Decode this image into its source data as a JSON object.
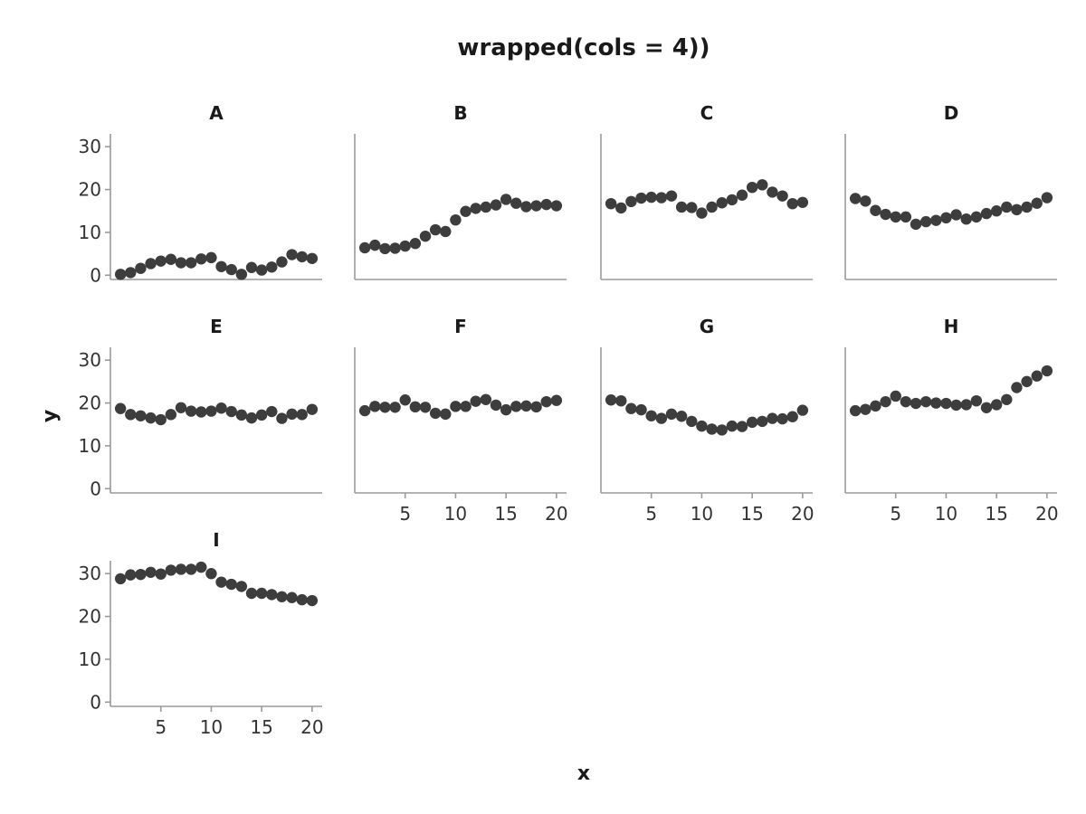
{
  "chart_data": {
    "type": "scatter",
    "title": "wrapped(cols = 4))",
    "xlabel": "x",
    "ylabel": "y",
    "xlim": [
      0,
      21
    ],
    "ylim": [
      -1,
      33
    ],
    "x_ticks": [
      5,
      10,
      15,
      20
    ],
    "y_ticks": [
      0,
      10,
      20,
      30
    ],
    "grid": false,
    "point_color": "#3d3d3d",
    "axis_color": "#9a9a9a",
    "x": [
      1,
      2,
      3,
      4,
      5,
      6,
      7,
      8,
      9,
      10,
      11,
      12,
      13,
      14,
      15,
      16,
      17,
      18,
      19,
      20
    ],
    "panels": [
      {
        "name": "A",
        "values": [
          0.2,
          0.6,
          1.6,
          2.7,
          3.3,
          3.7,
          2.9,
          2.9,
          3.8,
          4.1,
          2.0,
          1.3,
          0.2,
          1.8,
          1.2,
          1.9,
          3.1,
          4.8,
          4.3,
          3.9
        ]
      },
      {
        "name": "B",
        "values": [
          6.4,
          7.0,
          6.2,
          6.3,
          6.8,
          7.4,
          9.1,
          10.6,
          10.2,
          12.9,
          14.9,
          15.6,
          15.9,
          16.4,
          17.7,
          16.8,
          16.0,
          16.2,
          16.5,
          16.2
        ]
      },
      {
        "name": "C",
        "values": [
          16.7,
          15.7,
          17.2,
          18.0,
          18.2,
          18.1,
          18.5,
          15.9,
          15.8,
          14.5,
          15.9,
          16.9,
          17.6,
          18.7,
          20.5,
          21.1,
          19.4,
          18.5,
          16.7,
          17.0
        ]
      },
      {
        "name": "D",
        "values": [
          17.9,
          17.3,
          15.1,
          14.2,
          13.6,
          13.6,
          11.9,
          12.5,
          12.8,
          13.4,
          14.1,
          13.1,
          13.6,
          14.4,
          15.0,
          15.9,
          15.3,
          15.9,
          16.8,
          18.1
        ]
      },
      {
        "name": "E",
        "values": [
          18.7,
          17.3,
          17.0,
          16.5,
          16.1,
          17.3,
          18.9,
          18.1,
          17.9,
          18.1,
          18.8,
          18.0,
          17.2,
          16.5,
          17.2,
          18.0,
          16.4,
          17.4,
          17.3,
          18.5
        ]
      },
      {
        "name": "F",
        "values": [
          18.2,
          19.2,
          19.0,
          19.0,
          20.7,
          19.1,
          19.0,
          17.6,
          17.4,
          19.2,
          19.2,
          20.4,
          20.8,
          19.5,
          18.4,
          19.2,
          19.3,
          19.1,
          20.3,
          20.6
        ]
      },
      {
        "name": "G",
        "values": [
          20.7,
          20.5,
          18.7,
          18.4,
          17.0,
          16.4,
          17.4,
          16.9,
          15.7,
          14.6,
          13.9,
          13.7,
          14.6,
          14.5,
          15.5,
          15.7,
          16.4,
          16.3,
          16.8,
          18.3
        ]
      },
      {
        "name": "H",
        "values": [
          18.2,
          18.5,
          19.3,
          20.3,
          21.6,
          20.3,
          19.9,
          20.3,
          20.0,
          19.9,
          19.5,
          19.6,
          20.5,
          18.9,
          19.6,
          20.8,
          23.6,
          25.0,
          26.3,
          27.5
        ]
      },
      {
        "name": "I",
        "values": [
          28.8,
          29.7,
          29.8,
          30.3,
          29.9,
          30.8,
          31.0,
          31.0,
          31.5,
          30.0,
          28.0,
          27.5,
          27.0,
          25.4,
          25.4,
          25.1,
          24.6,
          24.4,
          23.9,
          23.7
        ]
      }
    ]
  }
}
